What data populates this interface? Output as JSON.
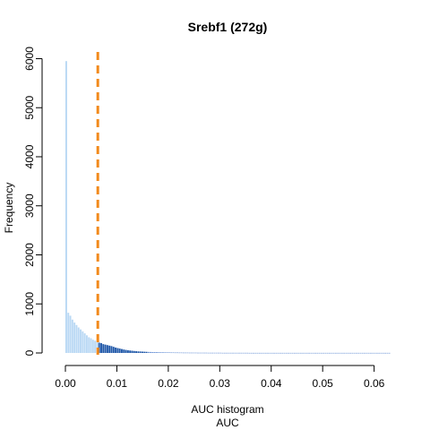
{
  "chart_data": {
    "type": "bar",
    "title": "Srebf1 (272g)",
    "xlabel": "AUC histogram",
    "xlabel2": "AUC",
    "ylabel": "Frequency",
    "xlim": [
      0,
      0.0632
    ],
    "ylim": [
      0,
      6100
    ],
    "xticks": [
      0.0,
      0.01,
      0.02,
      0.03,
      0.04,
      0.05,
      0.06
    ],
    "xtick_labels": [
      "0.00",
      "0.01",
      "0.02",
      "0.03",
      "0.04",
      "0.05",
      "0.06"
    ],
    "yticks": [
      0,
      1000,
      2000,
      3000,
      4000,
      5000,
      6000
    ],
    "ytick_labels": [
      "0",
      "1000",
      "2000",
      "3000",
      "4000",
      "5000",
      "6000"
    ],
    "threshold": 0.0063,
    "bin_width": 0.0004,
    "bin_start": 0.0,
    "values": [
      5950,
      820,
      760,
      680,
      620,
      570,
      520,
      480,
      440,
      400,
      360,
      320,
      300,
      270,
      250,
      230,
      210,
      200,
      180,
      170,
      160,
      150,
      140,
      125,
      110,
      100,
      90,
      80,
      70,
      62,
      55,
      50,
      45,
      40,
      35,
      32,
      30,
      27,
      25,
      23,
      21,
      20,
      18,
      17,
      16,
      15,
      14,
      13,
      12,
      12,
      11,
      10,
      10,
      9,
      9,
      8,
      8,
      7,
      7,
      7,
      6,
      6,
      6,
      6,
      5,
      5,
      5,
      5,
      5,
      4,
      4,
      4,
      4,
      4,
      4,
      4,
      3,
      3,
      3,
      3,
      3,
      3,
      3,
      3,
      3,
      3,
      3,
      3,
      3,
      2,
      2,
      2,
      2,
      2,
      2,
      2,
      2,
      2,
      2,
      2,
      2,
      2,
      2,
      2,
      2,
      2,
      2,
      2,
      2,
      2,
      2,
      2,
      2,
      2,
      2,
      2,
      2,
      2,
      2,
      2,
      2,
      2,
      2,
      2,
      2,
      2,
      2,
      2,
      2,
      2,
      2,
      2,
      2,
      2,
      2,
      2,
      2,
      2,
      2,
      2,
      2,
      2,
      2,
      2,
      2,
      2,
      2,
      2,
      2,
      2,
      2,
      2,
      2,
      2,
      2,
      2,
      2,
      2
    ],
    "colors": {
      "below_threshold": "#b9d8f4",
      "above_threshold_dark": "#1f57a8",
      "tail": "#6b93d6",
      "threshold_line": "#f28a1c",
      "axis": "#000000"
    }
  }
}
